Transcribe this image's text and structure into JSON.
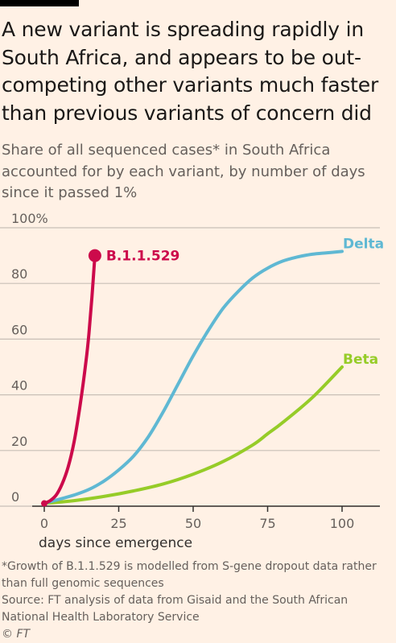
{
  "headline": "A new variant is spreading rapidly in South Africa, and appears to be out-competing other variants much faster than previous variants of concern did",
  "subtitle": "Share of all sequenced cases* in South Africa accounted for by each variant, by number of days since it passed 1%",
  "footnote": {
    "note": "*Growth of B.1.1.529 is modelled from S-gene dropout data rather than full genomic sequences",
    "source": "Source: FT analysis of data from Gisaid and the South African National Health Laboratory Service",
    "copyright": "© FT"
  },
  "colors": {
    "background": "#fff1e5",
    "b11529": "#cc0a4b",
    "delta": "#5fb8d3",
    "beta": "#96cc28",
    "grid": "#c8bfb6",
    "axis": "#33302e"
  },
  "chart_data": {
    "type": "line",
    "xlabel": "days since emergence",
    "ylabel": "",
    "xlim": [
      0,
      100
    ],
    "ylim": [
      0,
      100
    ],
    "xticks": [
      "0",
      "25",
      "50",
      "75",
      "100"
    ],
    "xtick_values": [
      0,
      25,
      50,
      75,
      100
    ],
    "yticks": [
      "0",
      "20",
      "40",
      "60",
      "80",
      "100%"
    ],
    "ytick_values": [
      0,
      20,
      40,
      60,
      80,
      100
    ],
    "grid": true,
    "series": [
      {
        "name": "B.1.1.529",
        "color": "#cc0a4b",
        "end_marker": true,
        "x": [
          0,
          2,
          4,
          6,
          8,
          10,
          12,
          14,
          15,
          16,
          17
        ],
        "y": [
          1,
          2,
          4,
          8,
          14,
          23,
          36,
          52,
          62,
          75,
          90
        ]
      },
      {
        "name": "Delta",
        "color": "#5fb8d3",
        "end_marker": false,
        "x": [
          0,
          5,
          10,
          15,
          20,
          25,
          30,
          35,
          40,
          45,
          50,
          55,
          60,
          65,
          70,
          75,
          80,
          85,
          90,
          95,
          100
        ],
        "y": [
          1,
          2.5,
          4,
          6,
          9,
          13,
          18,
          25,
          34,
          44,
          54,
          63,
          71,
          77,
          82,
          85.5,
          88,
          89.5,
          90.5,
          91,
          91.5
        ]
      },
      {
        "name": "Beta",
        "color": "#96cc28",
        "end_marker": false,
        "x": [
          0,
          10,
          20,
          30,
          40,
          50,
          60,
          70,
          75,
          80,
          90,
          100
        ],
        "y": [
          1,
          2,
          3.5,
          5.5,
          8,
          11.5,
          16,
          22,
          26,
          30,
          39,
          50
        ]
      }
    ]
  }
}
